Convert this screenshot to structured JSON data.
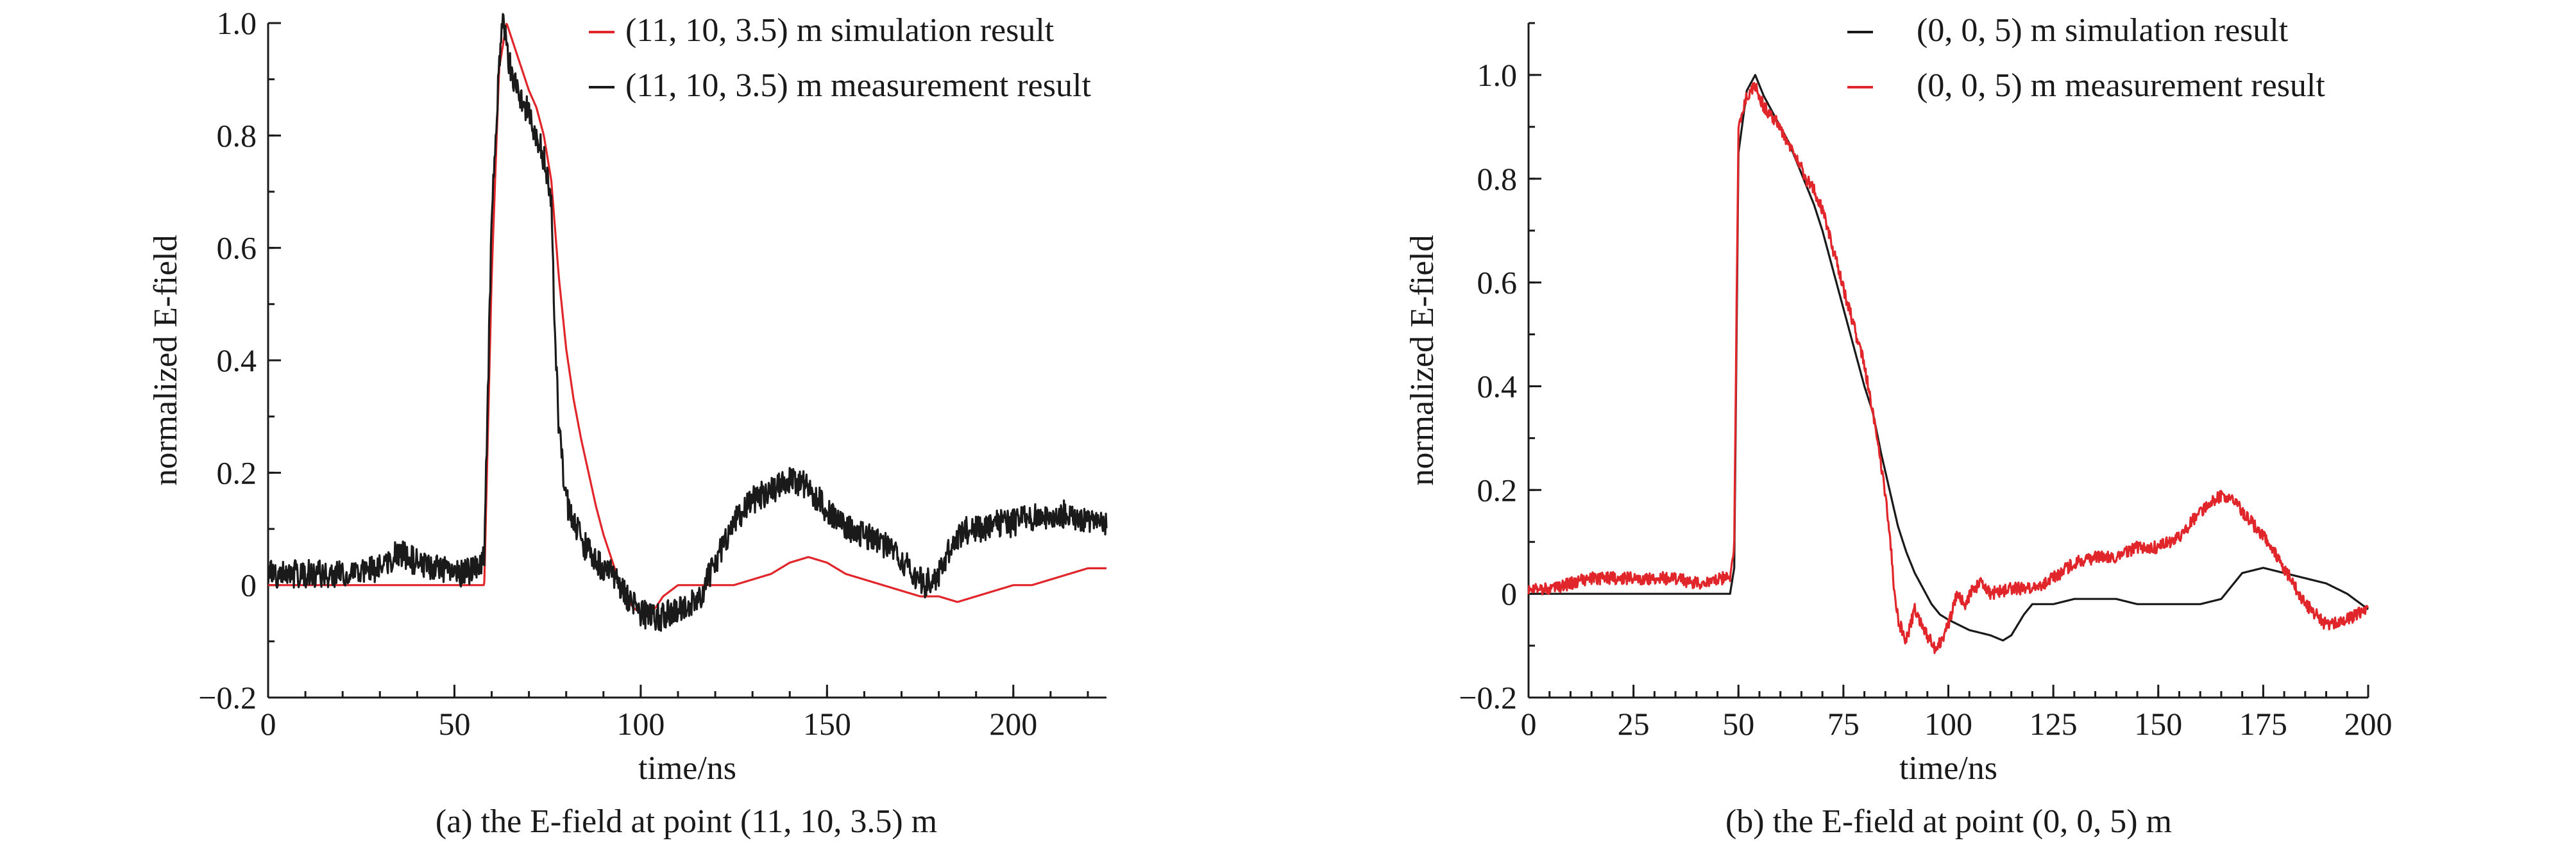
{
  "chart_data": [
    {
      "type": "line",
      "caption": "(a) the E-field at point (11, 10, 3.5) m",
      "xlabel": "time/ns",
      "ylabel": "normalized E-field",
      "xlim": [
        0,
        225
      ],
      "ylim": [
        -0.2,
        1.0
      ],
      "xticks": [
        0,
        50,
        100,
        150,
        200
      ],
      "yticks": [
        -0.2,
        0,
        0.2,
        0.4,
        0.6,
        0.8,
        1.0
      ],
      "ytick_labels": [
        "−0.2",
        "0",
        "0.2",
        "0.4",
        "0.6",
        "0.8",
        "1.0"
      ],
      "legend_position": "top-right",
      "series": [
        {
          "name": "(11, 10, 3.5) m simulation result",
          "color": "#e0262a",
          "x": [
            0,
            58,
            60,
            62,
            64,
            66,
            68,
            70,
            72,
            74,
            76,
            78,
            80,
            82,
            84,
            86,
            88,
            90,
            92,
            94,
            96,
            98,
            100,
            102,
            104,
            106,
            108,
            110,
            115,
            120,
            125,
            130,
            135,
            140,
            145,
            150,
            155,
            160,
            165,
            170,
            175,
            180,
            185,
            190,
            195,
            200,
            205,
            210,
            215,
            220,
            225
          ],
          "y": [
            0,
            0,
            0.55,
            0.92,
            1.0,
            0.96,
            0.92,
            0.88,
            0.85,
            0.8,
            0.72,
            0.55,
            0.42,
            0.33,
            0.26,
            0.2,
            0.14,
            0.09,
            0.05,
            0.01,
            -0.02,
            -0.04,
            -0.05,
            -0.05,
            -0.04,
            -0.02,
            -0.01,
            0.0,
            0.0,
            0.0,
            0.0,
            0.01,
            0.02,
            0.04,
            0.05,
            0.04,
            0.02,
            0.01,
            0.0,
            -0.01,
            -0.02,
            -0.02,
            -0.03,
            -0.02,
            -0.01,
            0.0,
            0.0,
            0.01,
            0.02,
            0.03,
            0.03
          ]
        },
        {
          "name": "(11, 10, 3.5) m measurement result",
          "color": "#1a1a1a",
          "x": [
            0,
            10,
            20,
            30,
            35,
            40,
            50,
            57,
            58,
            60,
            62,
            63,
            65,
            67,
            70,
            72,
            74,
            76,
            77,
            78,
            80,
            84,
            88,
            92,
            96,
            100,
            104,
            108,
            112,
            116,
            120,
            124,
            128,
            132,
            136,
            140,
            144,
            148,
            152,
            156,
            160,
            164,
            168,
            172,
            176,
            180,
            184,
            188,
            192,
            196,
            200,
            204,
            208,
            212,
            216,
            220,
            225
          ],
          "y": [
            0.02,
            0.02,
            0.02,
            0.03,
            0.06,
            0.04,
            0.02,
            0.03,
            0.05,
            0.65,
            0.93,
            1.0,
            0.92,
            0.88,
            0.84,
            0.8,
            0.76,
            0.68,
            0.45,
            0.28,
            0.15,
            0.08,
            0.04,
            0.02,
            -0.02,
            -0.05,
            -0.06,
            -0.05,
            -0.04,
            -0.02,
            0.04,
            0.1,
            0.14,
            0.16,
            0.17,
            0.19,
            0.18,
            0.15,
            0.12,
            0.1,
            0.09,
            0.08,
            0.06,
            0.03,
            0.0,
            0.02,
            0.08,
            0.1,
            0.1,
            0.11,
            0.11,
            0.12,
            0.12,
            0.13,
            0.12,
            0.12,
            0.11
          ]
        }
      ]
    },
    {
      "type": "line",
      "caption": "(b) the E-field at point (0, 0, 5) m",
      "xlabel": "time/ns",
      "ylabel": "normalized E-field",
      "xlim": [
        0,
        200
      ],
      "ylim": [
        -0.2,
        1.1
      ],
      "xticks": [
        0,
        25,
        50,
        75,
        100,
        125,
        150,
        175,
        200
      ],
      "yticks": [
        -0.2,
        0,
        0.2,
        0.4,
        0.6,
        0.8,
        1.0
      ],
      "ytick_labels": [
        "−0.2",
        "0",
        "0.2",
        "0.4",
        "0.6",
        "0.8",
        "1.0"
      ],
      "legend_position": "top-right",
      "series": [
        {
          "name": "(0, 0, 5) m simulation result",
          "color": "#1a1a1a",
          "x": [
            0,
            45,
            48,
            49,
            50,
            52,
            54,
            56,
            58,
            60,
            62,
            64,
            66,
            68,
            70,
            72,
            74,
            76,
            78,
            80,
            82,
            84,
            86,
            88,
            90,
            92,
            94,
            96,
            98,
            100,
            105,
            110,
            113,
            115,
            118,
            120,
            125,
            130,
            135,
            140,
            145,
            150,
            155,
            160,
            165,
            170,
            175,
            180,
            185,
            190,
            195,
            200
          ],
          "y": [
            0,
            0,
            0,
            0.05,
            0.85,
            0.97,
            1.0,
            0.96,
            0.93,
            0.9,
            0.87,
            0.83,
            0.79,
            0.75,
            0.7,
            0.64,
            0.58,
            0.52,
            0.46,
            0.4,
            0.35,
            0.27,
            0.2,
            0.13,
            0.08,
            0.04,
            0.01,
            -0.02,
            -0.04,
            -0.05,
            -0.07,
            -0.08,
            -0.09,
            -0.08,
            -0.04,
            -0.02,
            -0.02,
            -0.01,
            -0.01,
            -0.01,
            -0.02,
            -0.02,
            -0.02,
            -0.02,
            -0.01,
            0.04,
            0.05,
            0.04,
            0.03,
            0.02,
            0.0,
            -0.03
          ]
        },
        {
          "name": "(0, 0, 5) m measurement result",
          "color": "#e0262a",
          "x": [
            0,
            5,
            10,
            15,
            20,
            25,
            30,
            35,
            40,
            45,
            48,
            49,
            50,
            52,
            54,
            56,
            58,
            60,
            62,
            64,
            66,
            68,
            70,
            72,
            74,
            76,
            78,
            80,
            82,
            84,
            86,
            87,
            88,
            90,
            92,
            95,
            97,
            100,
            102,
            104,
            106,
            108,
            110,
            115,
            120,
            125,
            130,
            135,
            140,
            145,
            150,
            155,
            158,
            162,
            165,
            168,
            172,
            176,
            180,
            185,
            190,
            195,
            200
          ],
          "y": [
            0.01,
            0.01,
            0.02,
            0.03,
            0.03,
            0.03,
            0.03,
            0.03,
            0.02,
            0.03,
            0.03,
            0.1,
            0.9,
            0.96,
            0.98,
            0.94,
            0.92,
            0.9,
            0.86,
            0.84,
            0.8,
            0.78,
            0.74,
            0.68,
            0.62,
            0.56,
            0.5,
            0.44,
            0.35,
            0.25,
            0.12,
            0.02,
            -0.05,
            -0.09,
            -0.03,
            -0.08,
            -0.11,
            -0.06,
            0.0,
            -0.02,
            0.01,
            0.02,
            0.0,
            0.01,
            0.01,
            0.03,
            0.06,
            0.07,
            0.07,
            0.09,
            0.09,
            0.11,
            0.14,
            0.17,
            0.19,
            0.18,
            0.14,
            0.1,
            0.05,
            -0.02,
            -0.06,
            -0.05,
            -0.03
          ]
        }
      ]
    }
  ]
}
